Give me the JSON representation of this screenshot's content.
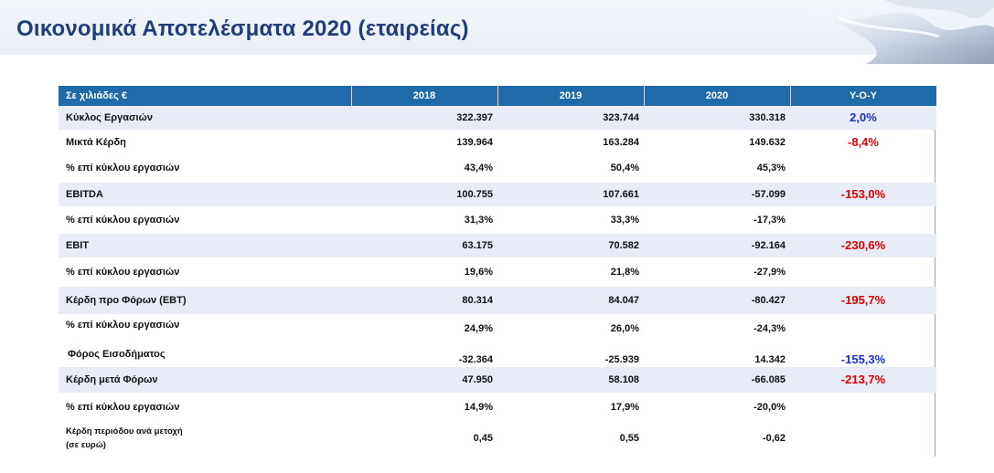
{
  "title": "Οικονομικά Αποτελέσματα 2020 (εταιρείας)",
  "colors": {
    "header_bg": "#1f6aa9",
    "title": "#1f3d7a",
    "shade": "#e8ecf6",
    "positive": "#1a2fd4",
    "negative": "#e00000"
  },
  "table": {
    "headers": [
      "Σε χιλιάδες €",
      "2018",
      "2019",
      "2020",
      "Y-O-Y"
    ],
    "rows": [
      {
        "label": "Κύκλος Εργασιών",
        "v2018": "322.397",
        "v2019": "323.744",
        "v2020": "330.318",
        "yoy": "2,0%"
      },
      {
        "label": "Μικτά Κέρδη",
        "v2018": "139.964",
        "v2019": "163.284",
        "v2020": "149.632",
        "yoy": "-8,4%"
      },
      {
        "label": "% επί κύκλου εργασιών",
        "v2018": "43,4%",
        "v2019": "50,4%",
        "v2020": "45,3%",
        "yoy": ""
      },
      {
        "label": "EBITDA",
        "v2018": "100.755",
        "v2019": "107.661",
        "v2020": "-57.099",
        "yoy": "-153,0%"
      },
      {
        "label": "% επί κύκλου εργασιών",
        "v2018": "31,3%",
        "v2019": "33,3%",
        "v2020": "-17,3%",
        "yoy": ""
      },
      {
        "label": "EBIT",
        "v2018": "63.175",
        "v2019": "70.582",
        "v2020": "-92.164",
        "yoy": "-230,6%"
      },
      {
        "label": "% επί κύκλου εργασιών",
        "v2018": "19,6%",
        "v2019": "21,8%",
        "v2020": "-27,9%",
        "yoy": ""
      },
      {
        "label": "Κέρδη προ Φόρων (EBT)",
        "v2018": "80.314",
        "v2019": "84.047",
        "v2020": "-80.427",
        "yoy": "-195,7%"
      },
      {
        "label": "% επί κύκλου εργασιών",
        "v2018": "24,9%",
        "v2019": "26,0%",
        "v2020": "-24,3%",
        "yoy": ""
      },
      {
        "label": "Φόρος Εισοδήματος",
        "v2018": "-32.364",
        "v2019": "-25.939",
        "v2020": "14.342",
        "yoy": "-155,3%"
      },
      {
        "label": "Κέρδη μετά Φόρων",
        "v2018": "47.950",
        "v2019": "58.108",
        "v2020": "-66.085",
        "yoy": "-213,7%"
      },
      {
        "label": "% επί κύκλου εργασιών",
        "v2018": "14,9%",
        "v2019": "17,9%",
        "v2020": "-20,0%",
        "yoy": ""
      },
      {
        "label": "Κέρδη περιόδου ανά μετοχή",
        "label2": "(σε ευρώ)",
        "v2018": "0,45",
        "v2019": "0,55",
        "v2020": "-0,62",
        "yoy": ""
      }
    ]
  }
}
